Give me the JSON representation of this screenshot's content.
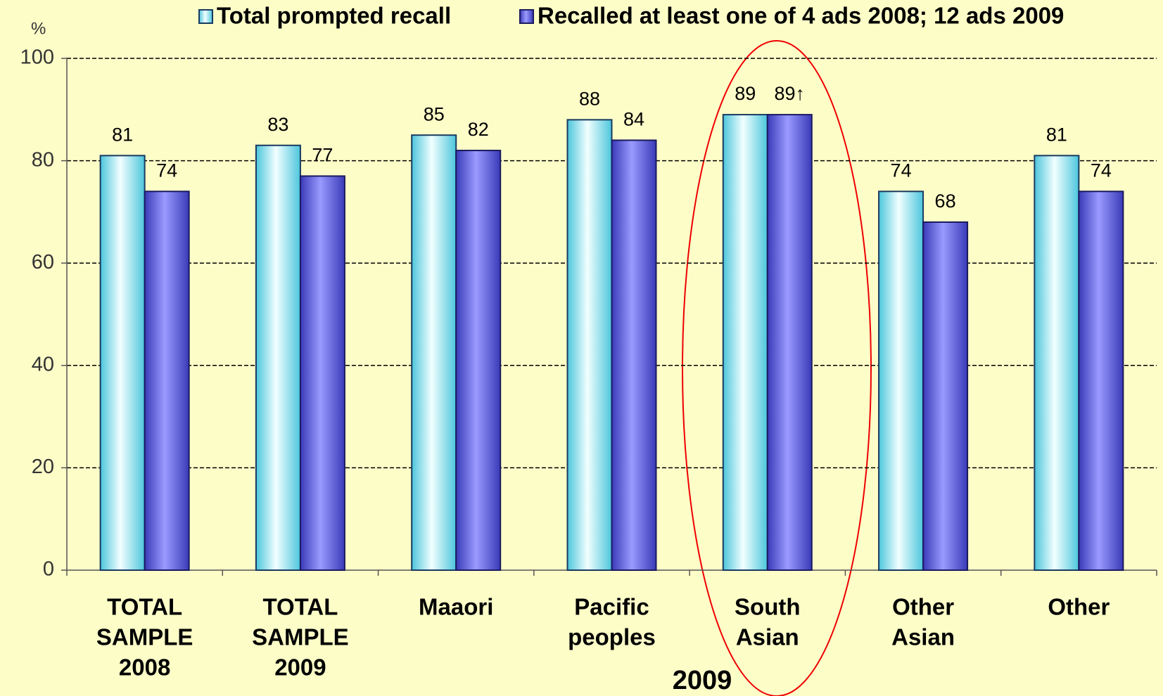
{
  "chart_data": {
    "type": "bar",
    "y_unit": "%",
    "annotation": "2009",
    "categories": [
      [
        "TOTAL",
        "SAMPLE",
        "2008"
      ],
      [
        "TOTAL",
        "SAMPLE",
        "2009"
      ],
      [
        "Maaori"
      ],
      [
        "Pacific",
        "peoples"
      ],
      [
        "South",
        "Asian"
      ],
      [
        "Other",
        "Asian"
      ],
      [
        "Other"
      ]
    ],
    "series": [
      {
        "name": "Total prompted recall",
        "color": "#7fe3f0",
        "values": [
          81,
          83,
          85,
          88,
          89,
          74,
          81
        ]
      },
      {
        "name": "Recalled at least one of 4 ads 2008; 12 ads 2009",
        "color": "#8080ff",
        "values": [
          74,
          77,
          82,
          84,
          89,
          68,
          74
        ],
        "value_labels": [
          "74",
          "77",
          "82",
          "84",
          "89↑",
          "68",
          "74"
        ]
      }
    ],
    "ylim": [
      0,
      100
    ],
    "yticks": [
      0,
      20,
      40,
      60,
      80,
      100
    ],
    "grid": true,
    "legend": "top"
  }
}
